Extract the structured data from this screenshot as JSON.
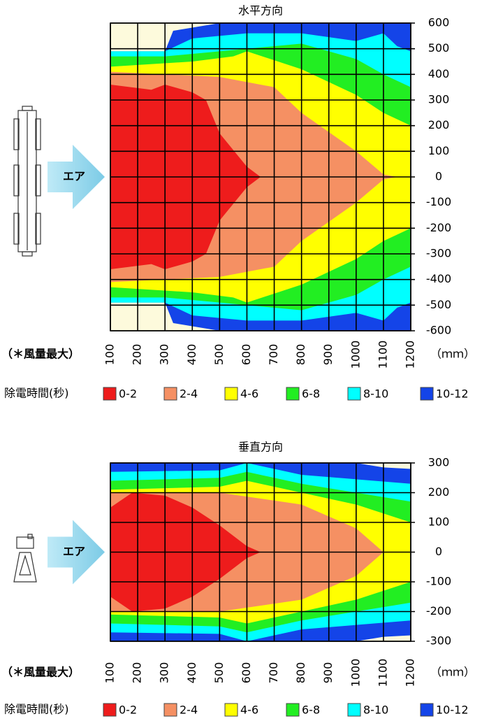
{
  "chart_data": [
    {
      "type": "contour",
      "title": "水平方向",
      "note": "（＊風量最大）",
      "unit": "（ｍｍ）",
      "legend_title": "除電時間(秒)",
      "air_label": "エア",
      "xlim": [
        100,
        1200
      ],
      "xticks": [
        100,
        200,
        300,
        400,
        500,
        600,
        700,
        800,
        900,
        1000,
        1100,
        1200
      ],
      "ylim": [
        -600,
        600
      ],
      "yticks": [
        600,
        500,
        400,
        300,
        200,
        100,
        0,
        -100,
        -200,
        -300,
        -400,
        -500,
        -600
      ],
      "series": [
        {
          "name": "0-2",
          "color": "#ee1c1c"
        },
        {
          "name": "2-4",
          "color": "#f59063"
        },
        {
          "name": "4-6",
          "color": "#ffff00"
        },
        {
          "name": "6-8",
          "color": "#22ee22"
        },
        {
          "name": "8-10",
          "color": "#00ffff"
        },
        {
          "name": "10-12",
          "color": "#1444e8"
        }
      ]
    },
    {
      "type": "contour",
      "title": "垂直方向",
      "note": "（＊風量最大）",
      "unit": "（ｍｍ）",
      "legend_title": "除電時間(秒)",
      "air_label": "エア",
      "xlim": [
        100,
        1200
      ],
      "xticks": [
        100,
        200,
        300,
        400,
        500,
        600,
        700,
        800,
        900,
        1000,
        1100,
        1200
      ],
      "ylim": [
        -300,
        300
      ],
      "yticks": [
        300,
        200,
        100,
        0,
        -100,
        -200,
        -300
      ],
      "series": [
        {
          "name": "0-2",
          "color": "#ee1c1c"
        },
        {
          "name": "2-4",
          "color": "#f59063"
        },
        {
          "name": "4-6",
          "color": "#ffff00"
        },
        {
          "name": "6-8",
          "color": "#22ee22"
        },
        {
          "name": "8-10",
          "color": "#00ffff"
        },
        {
          "name": "10-12",
          "color": "#1444e8"
        }
      ]
    }
  ]
}
